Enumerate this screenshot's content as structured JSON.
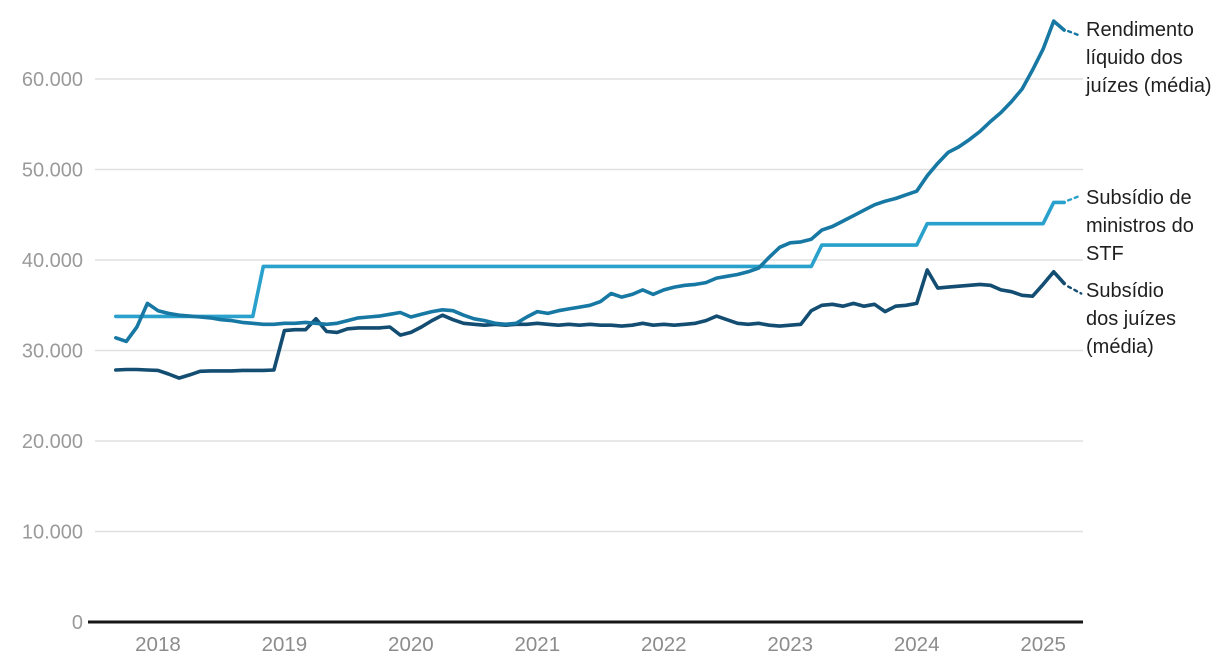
{
  "chart_data": {
    "type": "line",
    "title": "",
    "x_frequency": "monthly",
    "x_range_start": "2017-09",
    "x_range_end": "2025-03",
    "x_tick_years": [
      2018,
      2019,
      2020,
      2021,
      2022,
      2023,
      2024,
      2025
    ],
    "y_axis": {
      "ticks": [
        0,
        10000,
        20000,
        30000,
        40000,
        50000,
        60000
      ],
      "labels": [
        "0",
        "10.000",
        "20.000",
        "30.000",
        "40.000",
        "50.000",
        "60.000"
      ]
    },
    "ylim": [
      0,
      67000
    ],
    "grid": true,
    "legend_position": "right",
    "colors": {
      "grid": "#E0E0E0",
      "axis": "#161616",
      "y_tick_text": "#9A9A9A",
      "x_tick_text": "#8C8C8C",
      "legend_text": "#1F1F1F"
    },
    "series": [
      {
        "name": "Rendimento líquido dos juízes (média)",
        "color": "#1778A4",
        "values": [
          31400,
          31000,
          32600,
          35200,
          34400,
          34100,
          33900,
          33800,
          33700,
          33600,
          33400,
          33300,
          33100,
          33000,
          32900,
          32900,
          33000,
          33000,
          33100,
          33000,
          32900,
          33000,
          33300,
          33600,
          33700,
          33800,
          34000,
          34200,
          33700,
          34000,
          34300,
          34500,
          34400,
          33900,
          33500,
          33300,
          33000,
          32900,
          33000,
          33700,
          34300,
          34100,
          34400,
          34600,
          34800,
          35000,
          35400,
          36300,
          35900,
          36200,
          36700,
          36200,
          36700,
          37000,
          37200,
          37300,
          37500,
          38000,
          38200,
          38400,
          38700,
          39100,
          40300,
          41400,
          41900,
          42000,
          42300,
          43300,
          43700,
          44300,
          44900,
          45500,
          46100,
          46500,
          46800,
          47200,
          47600,
          49300,
          50700,
          51900,
          52500,
          53300,
          54200,
          55300,
          56300,
          57500,
          58900,
          61000,
          63300,
          66400,
          65400
        ]
      },
      {
        "name": "Subsídio de ministros do STF",
        "color": "#29A1CC",
        "values": [
          33763,
          33763,
          33763,
          33763,
          33763,
          33763,
          33763,
          33763,
          33763,
          33763,
          33763,
          33763,
          33763,
          33763,
          39293,
          39293,
          39293,
          39293,
          39293,
          39293,
          39293,
          39293,
          39293,
          39293,
          39293,
          39293,
          39293,
          39293,
          39293,
          39293,
          39293,
          39293,
          39293,
          39293,
          39293,
          39293,
          39293,
          39293,
          39293,
          39293,
          39293,
          39293,
          39293,
          39293,
          39293,
          39293,
          39293,
          39293,
          39293,
          39293,
          39293,
          39293,
          39293,
          39293,
          39293,
          39293,
          39293,
          39293,
          39293,
          39293,
          39293,
          39293,
          39293,
          39293,
          39293,
          39293,
          39293,
          41651,
          41651,
          41651,
          41651,
          41651,
          41651,
          41651,
          41651,
          41651,
          41651,
          44009,
          44009,
          44009,
          44009,
          44009,
          44009,
          44009,
          44009,
          44009,
          44009,
          44009,
          44009,
          46366,
          46366
        ]
      },
      {
        "name": "Subsídio dos juízes (média)",
        "color": "#134D72",
        "values": [
          27850,
          27900,
          27900,
          27850,
          27800,
          27400,
          26950,
          27300,
          27700,
          27750,
          27750,
          27750,
          27800,
          27800,
          27800,
          27850,
          32200,
          32300,
          32300,
          33500,
          32100,
          32000,
          32400,
          32500,
          32500,
          32500,
          32600,
          31700,
          32000,
          32600,
          33300,
          33900,
          33400,
          33000,
          32900,
          32800,
          32900,
          32800,
          32900,
          32900,
          33000,
          32900,
          32800,
          32900,
          32800,
          32900,
          32800,
          32800,
          32700,
          32800,
          33000,
          32800,
          32900,
          32800,
          32900,
          33000,
          33300,
          33800,
          33400,
          33000,
          32900,
          33000,
          32800,
          32700,
          32800,
          32900,
          34400,
          35000,
          35100,
          34900,
          35200,
          34900,
          35100,
          34300,
          34900,
          35000,
          35200,
          38900,
          36900,
          37000,
          37100,
          37200,
          37300,
          37200,
          36700,
          36500,
          36100,
          36000,
          37300,
          38700,
          37400
        ]
      }
    ]
  }
}
